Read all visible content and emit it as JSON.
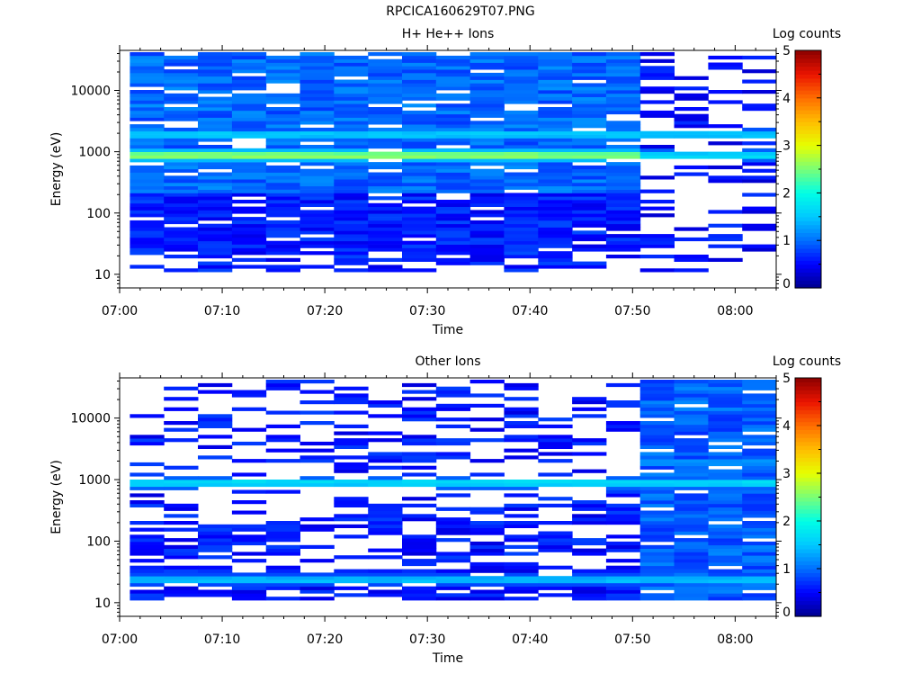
{
  "figure": {
    "title": "RPCICA160629T07.PNG"
  },
  "time_axis": {
    "label": "Time",
    "ticks": [
      "07:00",
      "07:10",
      "07:20",
      "07:30",
      "07:40",
      "07:50",
      "08:00"
    ],
    "range_minutes": [
      0,
      64
    ]
  },
  "energy_axis": {
    "label": "Energy (eV)",
    "scale": "log",
    "range_ev": [
      6,
      45000
    ],
    "ticks": [
      {
        "value": 10,
        "label": "10"
      },
      {
        "value": 100,
        "label": "100"
      },
      {
        "value": 1000,
        "label": "1000"
      },
      {
        "value": 10000,
        "label": "10000"
      }
    ]
  },
  "colorbar": {
    "label": "Log counts",
    "range": [
      0,
      5
    ],
    "ticks": [
      "0",
      "1",
      "2",
      "3",
      "4",
      "5"
    ]
  },
  "chart_data": [
    {
      "type": "heatmap",
      "title": "H+ He++ Ions",
      "xlabel": "Time",
      "ylabel": "Energy (eV)",
      "colorbar_label": "Log counts",
      "xlim_minutes": [
        0,
        64
      ],
      "ylim_ev": [
        6,
        45000
      ],
      "yscale": "log",
      "features": [
        {
          "energy_ev": 800,
          "log_counts": 2.6,
          "time_minutes": [
            1,
            50
          ]
        },
        {
          "energy_ev": 1800,
          "log_counts": 1.6,
          "time_minutes": [
            1,
            64
          ]
        },
        {
          "energy_ev": 800,
          "log_counts": 1.7,
          "time_minutes": [
            50,
            64
          ]
        }
      ],
      "gaps_minutes": [
        [
          50,
          64
        ]
      ]
    },
    {
      "type": "heatmap",
      "title": "Other Ions",
      "xlabel": "Time",
      "ylabel": "Energy (eV)",
      "colorbar_label": "Log counts",
      "xlim_minutes": [
        0,
        64
      ],
      "ylim_ev": [
        6,
        45000
      ],
      "yscale": "log",
      "features": [
        {
          "energy_ev": 850,
          "log_counts": 1.7,
          "time_minutes": [
            1,
            64
          ]
        },
        {
          "energy_ev": 22,
          "log_counts": 1.5,
          "time_minutes": [
            1,
            64
          ]
        },
        {
          "energy_ev": 1800,
          "log_counts": 1.3,
          "time_minutes": [
            50,
            64
          ]
        }
      ],
      "enhanced_minutes": [
        [
          50,
          64
        ]
      ]
    }
  ]
}
